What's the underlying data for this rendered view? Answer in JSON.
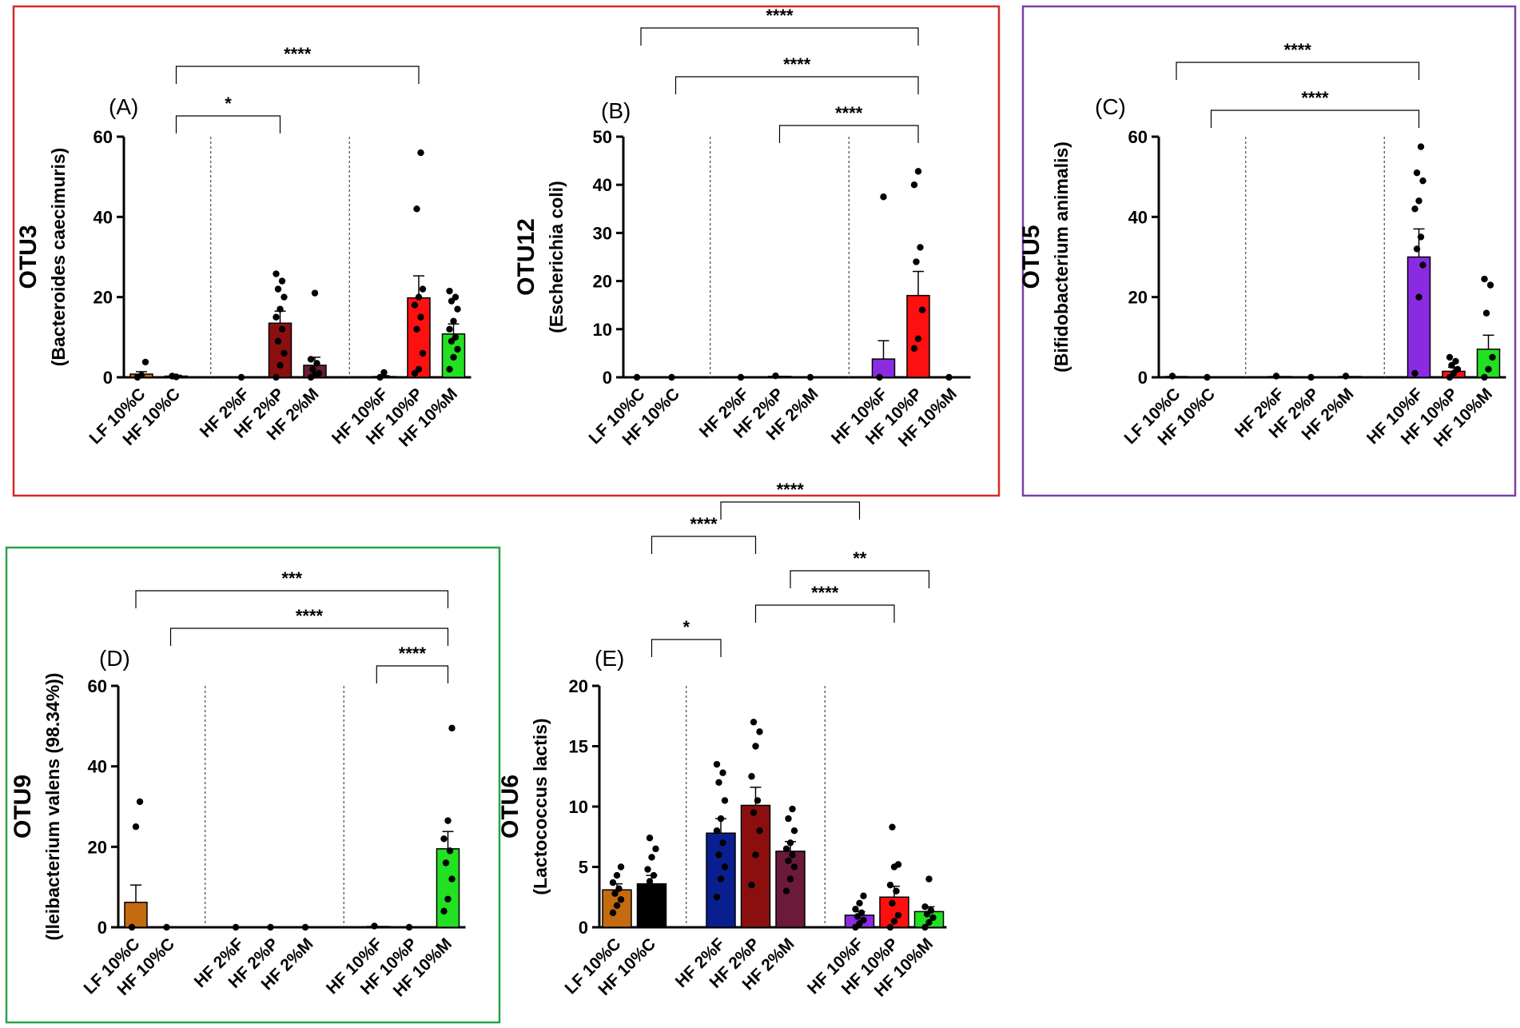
{
  "figure": {
    "group_colors": {
      "red": "#d62828",
      "purple": "#7b3fa8",
      "green": "#2aa148"
    }
  },
  "chart_data": [
    {
      "type": "bar",
      "panel_label": "(A)",
      "ylabel_main": "OTU3",
      "ylabel_sub": "(Bacteroides caecimuris)",
      "ylim": [
        0,
        60
      ],
      "yticks": [
        0,
        20,
        40,
        60
      ],
      "categories": [
        "LF 10%C",
        "HF 10%C",
        "HF 2%F",
        "HF 2%P",
        "HF 2%M",
        "HF 10%F",
        "HF 10%P",
        "HF 10%M"
      ],
      "values": [
        0.8,
        0.3,
        0,
        13.5,
        3,
        0.2,
        19.8,
        10.8
      ],
      "errors": [
        0.6,
        0.2,
        0,
        3,
        2,
        0.2,
        5.5,
        2.5
      ],
      "bar_colors": [
        "#c46a10",
        "#000000",
        "#0a1f8f",
        "#8b0f0f",
        "#6b1a3a",
        "#8a2be2",
        "#ff1010",
        "#22e022"
      ],
      "points": [
        [
          0,
          0.5,
          3.8
        ],
        [
          0.3,
          0.1
        ],
        [
          0
        ],
        [
          0,
          3,
          6,
          9,
          12,
          15,
          17,
          20,
          22,
          24,
          25.8
        ],
        [
          0,
          0.5,
          1,
          2,
          3.5,
          4.5,
          21
        ],
        [
          0,
          1.2
        ],
        [
          1,
          2,
          6,
          12,
          15,
          18,
          20,
          22,
          42,
          56
        ],
        [
          2,
          5,
          7,
          9,
          10,
          12,
          14,
          17,
          19,
          20,
          21.5
        ]
      ],
      "separators_after": [
        1,
        4
      ],
      "brackets": [
        {
          "from": 1,
          "to": 3,
          "label": "*",
          "level": 1
        },
        {
          "from": 1,
          "to": 6,
          "label": "****",
          "level": 2
        }
      ]
    },
    {
      "type": "bar",
      "panel_label": "(B)",
      "ylabel_main": "OTU12",
      "ylabel_sub": "(Escherichia coli)",
      "ylim": [
        0,
        50
      ],
      "yticks": [
        0,
        10,
        20,
        30,
        40,
        50
      ],
      "categories": [
        "LF 10%C",
        "HF 10%C",
        "HF 2%F",
        "HF 2%P",
        "HF 2%M",
        "HF 10%F",
        "HF 10%P",
        "HF 10%M"
      ],
      "values": [
        0.1,
        0.1,
        0.1,
        0.2,
        0.1,
        3.8,
        17,
        0.1
      ],
      "errors": [
        0,
        0,
        0,
        0,
        0,
        3.8,
        5,
        0
      ],
      "bar_colors": [
        "#c46a10",
        "#000000",
        "#0a1f8f",
        "#8b0f0f",
        "#6b1a3a",
        "#8a2be2",
        "#ff1010",
        "#22e022"
      ],
      "points": [
        [
          0
        ],
        [
          0
        ],
        [
          0
        ],
        [
          0.3
        ],
        [
          0
        ],
        [
          0,
          37.5
        ],
        [
          6,
          8,
          14,
          24,
          27,
          40,
          42.8
        ],
        [
          0
        ]
      ],
      "separators_after": [
        1,
        4
      ],
      "brackets": [
        {
          "from": 3,
          "to": 6,
          "label": "****",
          "level": 1
        },
        {
          "from": 1,
          "to": 6,
          "label": "****",
          "level": 2
        },
        {
          "from": 0,
          "to": 6,
          "label": "****",
          "level": 3
        }
      ]
    },
    {
      "type": "bar",
      "panel_label": "(C)",
      "ylabel_main": "OTU5",
      "ylabel_sub": "(Bifidobacterium animalis)",
      "ylim": [
        0,
        60
      ],
      "yticks": [
        0,
        20,
        40,
        60
      ],
      "categories": [
        "LF 10%C",
        "HF 10%C",
        "HF 2%F",
        "HF 2%P",
        "HF 2%M",
        "HF 10%F",
        "HF 10%P",
        "HF 10%M"
      ],
      "values": [
        0.2,
        0.1,
        0.2,
        0.1,
        0.2,
        30,
        1.5,
        7
      ],
      "errors": [
        0,
        0,
        0,
        0,
        0,
        7,
        1,
        3.5
      ],
      "bar_colors": [
        "#c46a10",
        "#000000",
        "#0a1f8f",
        "#8b0f0f",
        "#6b1a3a",
        "#8a2be2",
        "#ff1010",
        "#22e022"
      ],
      "points": [
        [
          0.3
        ],
        [
          0
        ],
        [
          0.3
        ],
        [
          0
        ],
        [
          0.3
        ],
        [
          1,
          20,
          28,
          32,
          35,
          42,
          44,
          49,
          51,
          57.5
        ],
        [
          0,
          1,
          2,
          3,
          4,
          5
        ],
        [
          0,
          2,
          5,
          16,
          23,
          24.5
        ]
      ],
      "separators_after": [
        1,
        4
      ],
      "brackets": [
        {
          "from": 1,
          "to": 5,
          "label": "****",
          "level": 1
        },
        {
          "from": 0,
          "to": 5,
          "label": "****",
          "level": 2
        }
      ]
    },
    {
      "type": "bar",
      "panel_label": "(D)",
      "ylabel_main": "OTU9",
      "ylabel_sub": "(Ileibacterium valens (98.34%))",
      "ylim": [
        0,
        60
      ],
      "yticks": [
        0,
        20,
        40,
        60
      ],
      "categories": [
        "LF 10%C",
        "HF 10%C",
        "HF 2%F",
        "HF 2%P",
        "HF 2%M",
        "HF 10%F",
        "HF 10%P",
        "HF 10%M"
      ],
      "values": [
        6.2,
        0.1,
        0.1,
        0.1,
        0.1,
        0.2,
        0.1,
        19.5
      ],
      "errors": [
        4.3,
        0,
        0,
        0,
        0,
        0,
        0,
        4.3
      ],
      "bar_colors": [
        "#c46a10",
        "#000000",
        "#0a1f8f",
        "#8b0f0f",
        "#6b1a3a",
        "#8a2be2",
        "#ff1010",
        "#22e022"
      ],
      "points": [
        [
          0,
          25,
          31.2
        ],
        [
          0
        ],
        [
          0
        ],
        [
          0
        ],
        [
          0
        ],
        [
          0.3
        ],
        [
          0
        ],
        [
          4,
          7,
          12,
          16,
          19,
          22,
          26.5,
          49.5
        ]
      ],
      "separators_after": [
        1,
        4
      ],
      "brackets": [
        {
          "from": 5,
          "to": 7,
          "label": "****",
          "level": 1,
          "fromOffset": -2.2
        },
        {
          "from": 1,
          "to": 7,
          "label": "****",
          "level": 2
        },
        {
          "from": 0,
          "to": 7,
          "label": "***",
          "level": 3
        }
      ]
    },
    {
      "type": "bar",
      "panel_label": "(E)",
      "ylabel_main": "OTU6",
      "ylabel_sub": "(Lactococcus lactis)",
      "ylim": [
        0,
        20
      ],
      "yticks": [
        0,
        5,
        10,
        15,
        20
      ],
      "categories": [
        "LF 10%C",
        "HF 10%C",
        "HF 2%F",
        "HF 2%P",
        "HF 2%M",
        "HF 10%F",
        "HF 10%P",
        "HF 10%M"
      ],
      "values": [
        3.1,
        3.6,
        7.8,
        10.1,
        6.3,
        1.0,
        2.5,
        1.3
      ],
      "errors": [
        0.5,
        0.7,
        1.2,
        1.5,
        0.8,
        0.3,
        0.9,
        0.4
      ],
      "bar_colors": [
        "#c46a10",
        "#000000",
        "#0a1f8f",
        "#8b0f0f",
        "#6b1a3a",
        "#8a2be2",
        "#ff1010",
        "#22e022"
      ],
      "points": [
        [
          1.2,
          1.8,
          2.3,
          2.8,
          3.2,
          3.7,
          4.3,
          5
        ],
        [
          2,
          2.5,
          3.2,
          3.8,
          4.3,
          4.8,
          5.8,
          6.5,
          7.4
        ],
        [
          2.5,
          4,
          5,
          6,
          7,
          8,
          9,
          10.5,
          12,
          12.8,
          13.5
        ],
        [
          3.5,
          6,
          8,
          9.5,
          10.5,
          12.5,
          15,
          16.2,
          17
        ],
        [
          3,
          4,
          5,
          5.5,
          6,
          6.5,
          7,
          8,
          9,
          9.8
        ],
        [
          0,
          0.3,
          0.6,
          0.9,
          1.2,
          1.5,
          2.0,
          2.6
        ],
        [
          0,
          0.5,
          1,
          2,
          3,
          3.5,
          5,
          5.2,
          8.3
        ],
        [
          0,
          0.4,
          0.8,
          1.1,
          1.4,
          1.7,
          4
        ]
      ],
      "separators_after": [
        1,
        4
      ],
      "brackets": [
        {
          "from": 1,
          "to": 2,
          "label": "*",
          "level": 1
        },
        {
          "from": 3,
          "to": 6,
          "label": "****",
          "level": 2
        },
        {
          "from": 4,
          "to": 7,
          "label": "**",
          "level": 3
        },
        {
          "from": 1,
          "to": 3,
          "label": "****",
          "level": 4
        },
        {
          "from": 2,
          "to": 5,
          "label": "****",
          "level": 5
        }
      ]
    }
  ]
}
